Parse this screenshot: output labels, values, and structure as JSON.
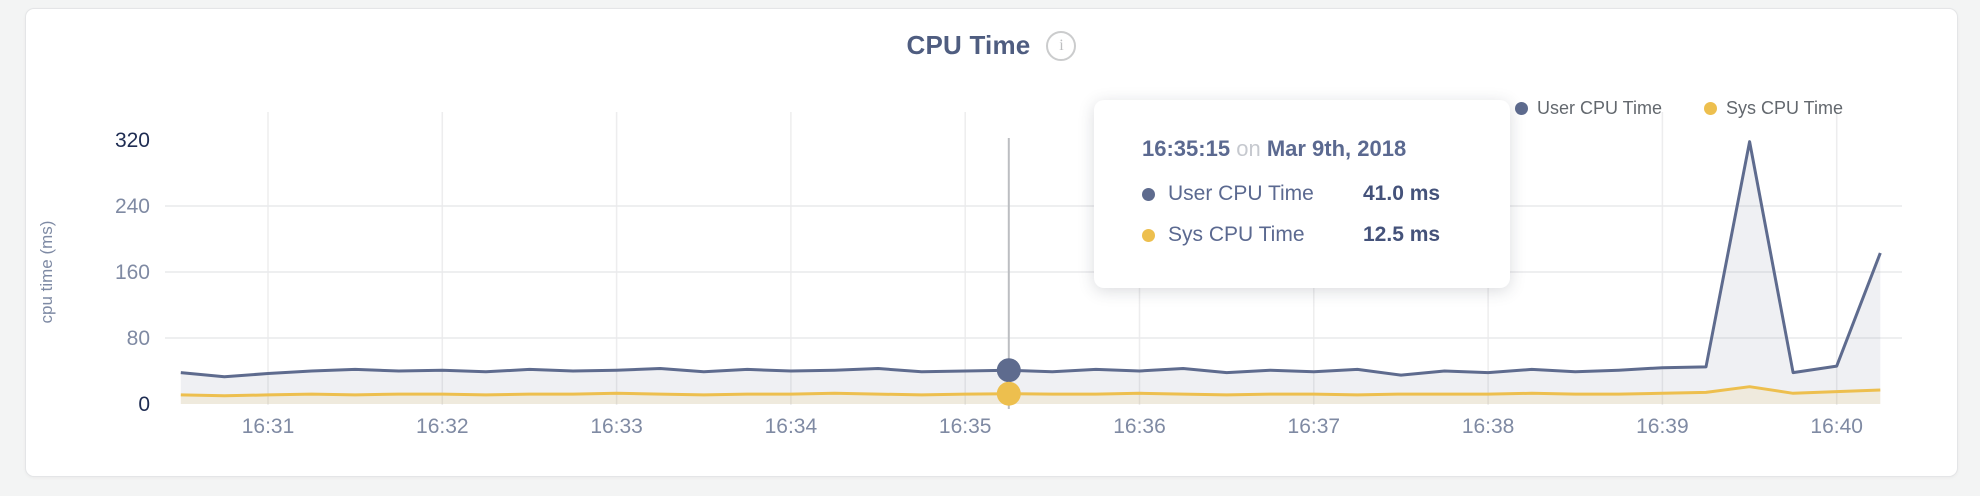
{
  "header": {
    "title": "CPU Time",
    "info_icon": "i"
  },
  "legend": {
    "items": [
      {
        "label": "User CPU Time",
        "color": "#5e6b8e"
      },
      {
        "label": "Sys CPU Time",
        "color": "#edbf4e"
      }
    ]
  },
  "tooltip": {
    "time": "16:35:15",
    "connector": "on",
    "date": "Mar 9th, 2018",
    "rows": [
      {
        "label": "User CPU Time",
        "value": "41.0 ms",
        "color": "#5e6b8e"
      },
      {
        "label": "Sys CPU Time",
        "value": "12.5 ms",
        "color": "#edbf4e"
      }
    ]
  },
  "chart_data": {
    "type": "area",
    "title": "CPU Time",
    "xlabel": "",
    "ylabel": "cpu time (ms)",
    "ylim": [
      0,
      320
    ],
    "y_ticks": [
      0,
      80,
      160,
      240,
      320
    ],
    "x_ticks": [
      "16:31",
      "16:32",
      "16:33",
      "16:34",
      "16:35",
      "16:36",
      "16:37",
      "16:38",
      "16:39",
      "16:40"
    ],
    "grid": true,
    "legend_position": "top-right",
    "x": [
      "16:30:30",
      "16:30:45",
      "16:31:00",
      "16:31:15",
      "16:31:30",
      "16:31:45",
      "16:32:00",
      "16:32:15",
      "16:32:30",
      "16:32:45",
      "16:33:00",
      "16:33:15",
      "16:33:30",
      "16:33:45",
      "16:34:00",
      "16:34:15",
      "16:34:30",
      "16:34:45",
      "16:35:00",
      "16:35:15",
      "16:35:30",
      "16:35:45",
      "16:36:00",
      "16:36:15",
      "16:36:30",
      "16:36:45",
      "16:37:00",
      "16:37:15",
      "16:37:30",
      "16:37:45",
      "16:38:00",
      "16:38:15",
      "16:38:30",
      "16:38:45",
      "16:39:00",
      "16:39:15",
      "16:39:30",
      "16:39:45",
      "16:40:00",
      "16:40:15"
    ],
    "series": [
      {
        "name": "User CPU Time",
        "color": "#5e6b8e",
        "fill": "rgba(94,107,142,0.10)",
        "unit": "ms",
        "values": [
          38,
          33,
          37,
          40,
          42,
          40,
          41,
          39,
          42,
          40,
          41,
          43,
          39,
          42,
          40,
          41,
          43,
          39,
          40,
          41,
          39,
          42,
          40,
          43,
          38,
          41,
          39,
          42,
          35,
          40,
          38,
          42,
          39,
          41,
          44,
          45,
          318,
          38,
          46,
          183
        ]
      },
      {
        "name": "Sys CPU Time",
        "color": "#edbf4e",
        "fill": "rgba(237,191,78,0.13)",
        "unit": "ms",
        "values": [
          11,
          10,
          11,
          12,
          11,
          12,
          12,
          11,
          12,
          12,
          13,
          12,
          11,
          12,
          12,
          13,
          12,
          11,
          12,
          12.5,
          12,
          12,
          13,
          12,
          11,
          12,
          12,
          11,
          12,
          12,
          12,
          13,
          12,
          12,
          13,
          14,
          21,
          13,
          15,
          17
        ]
      }
    ],
    "highlight": {
      "index": 19,
      "time": "16:35:15",
      "date": "Mar 9th, 2018",
      "user_cpu_ms": 41.0,
      "sys_cpu_ms": 12.5
    }
  }
}
